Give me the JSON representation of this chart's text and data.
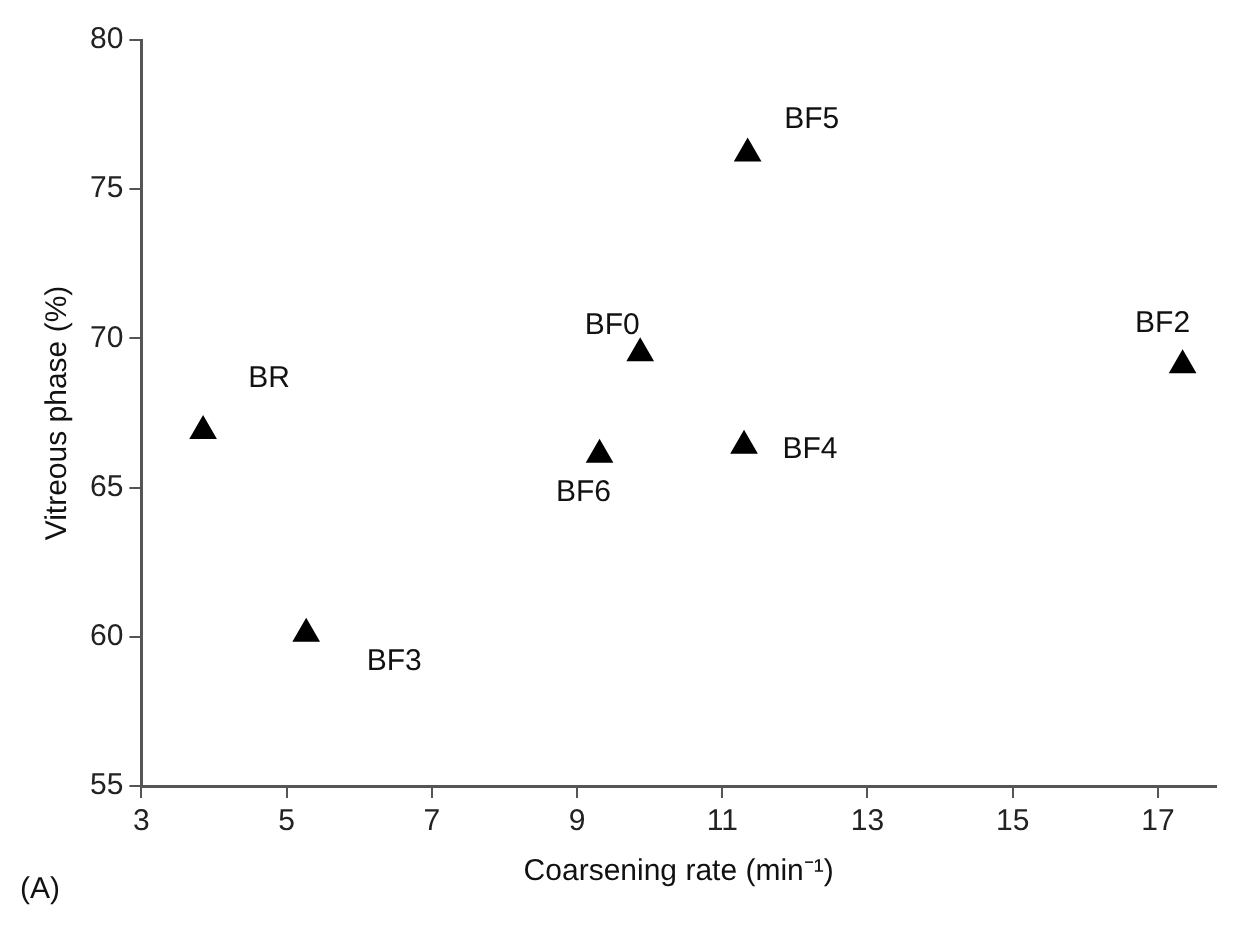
{
  "chart_data": {
    "type": "scatter",
    "xlabel": "Coarsening rate (min⁻¹)",
    "ylabel": "Vitreous phase (%)",
    "marker": "triangle",
    "x": [
      3.85,
      5.27,
      9.31,
      9.87,
      11.35,
      11.3,
      17.34
    ],
    "series": [
      {
        "color": "#000000",
        "values": [
          66.9,
          60.1,
          66.1,
          69.5,
          76.2,
          66.4,
          69.1
        ]
      }
    ],
    "xlim": [
      3,
      17.8
    ],
    "xticks": [
      3,
      5,
      7,
      9,
      11,
      13,
      15,
      17
    ],
    "ylim": [
      55,
      80
    ],
    "yticks": [
      55,
      60,
      65,
      70,
      75,
      80
    ],
    "legend": false,
    "annotations": [
      {
        "text": "BR",
        "x": 3.85,
        "y": 66.9
      },
      {
        "text": "BF3",
        "x": 5.27,
        "y": 60.1
      },
      {
        "text": "BF6",
        "x": 9.31,
        "y": 66.1
      },
      {
        "text": "BF0",
        "x": 9.87,
        "y": 69.5
      },
      {
        "text": "BF5",
        "x": 11.35,
        "y": 76.2
      },
      {
        "text": "BF4",
        "x": 11.3,
        "y": 66.4
      },
      {
        "text": "BF2",
        "x": 17.34,
        "y": 69.1
      },
      "(A)"
    ]
  }
}
